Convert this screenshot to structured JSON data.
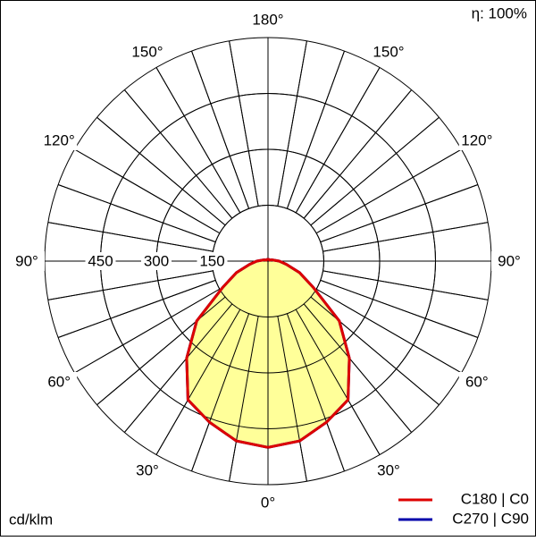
{
  "chart_data": {
    "type": "polar",
    "corner_text": "η: 100%",
    "unit_label": "cd/klm",
    "angles": [
      0,
      10,
      20,
      30,
      40,
      50,
      60,
      70,
      80,
      90,
      100,
      110,
      120,
      130,
      140,
      150,
      160,
      170,
      180
    ],
    "angle_ticks": [
      {
        "value": 0,
        "label": "0°"
      },
      {
        "value": 30,
        "label": "30°"
      },
      {
        "value": 60,
        "label": "60°"
      },
      {
        "value": 90,
        "label": "90°"
      },
      {
        "value": 120,
        "label": "120°"
      },
      {
        "value": 150,
        "label": "150°"
      },
      {
        "value": 180,
        "label": "180°"
      }
    ],
    "rlim": [
      0,
      600
    ],
    "rticks": [
      150,
      300,
      450
    ],
    "fill_color": "#ffff99",
    "series": [
      {
        "name": "C270 | C90",
        "color": "#0000aa",
        "values": [
          500,
          490,
          460,
          430,
          340,
          250,
          140,
          90,
          50,
          30,
          15,
          10,
          5,
          5,
          5,
          5,
          5,
          5,
          5
        ]
      },
      {
        "name": "C180 | C0",
        "color": "#dd0000",
        "values": [
          500,
          490,
          460,
          430,
          340,
          250,
          140,
          90,
          50,
          30,
          15,
          10,
          5,
          5,
          5,
          5,
          5,
          5,
          5
        ]
      }
    ]
  }
}
